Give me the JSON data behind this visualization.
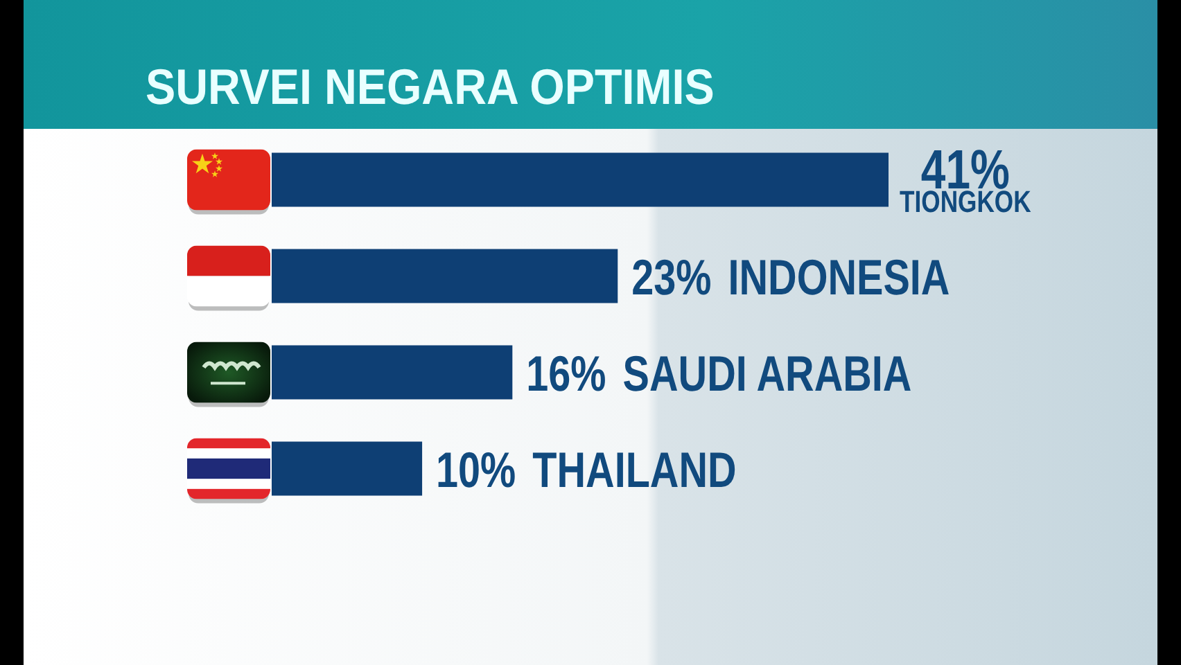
{
  "chart_data": {
    "type": "bar",
    "orientation": "horizontal",
    "title": "SURVEI NEGARA OPTIMIS",
    "categories": [
      "TIONGKOK",
      "INDONESIA",
      "SAUDI ARABIA",
      "THAILAND"
    ],
    "values": [
      41,
      23,
      16,
      10
    ],
    "value_labels": [
      "41%",
      "23%",
      "16%",
      "10%"
    ],
    "color": "#0e3f74"
  }
}
